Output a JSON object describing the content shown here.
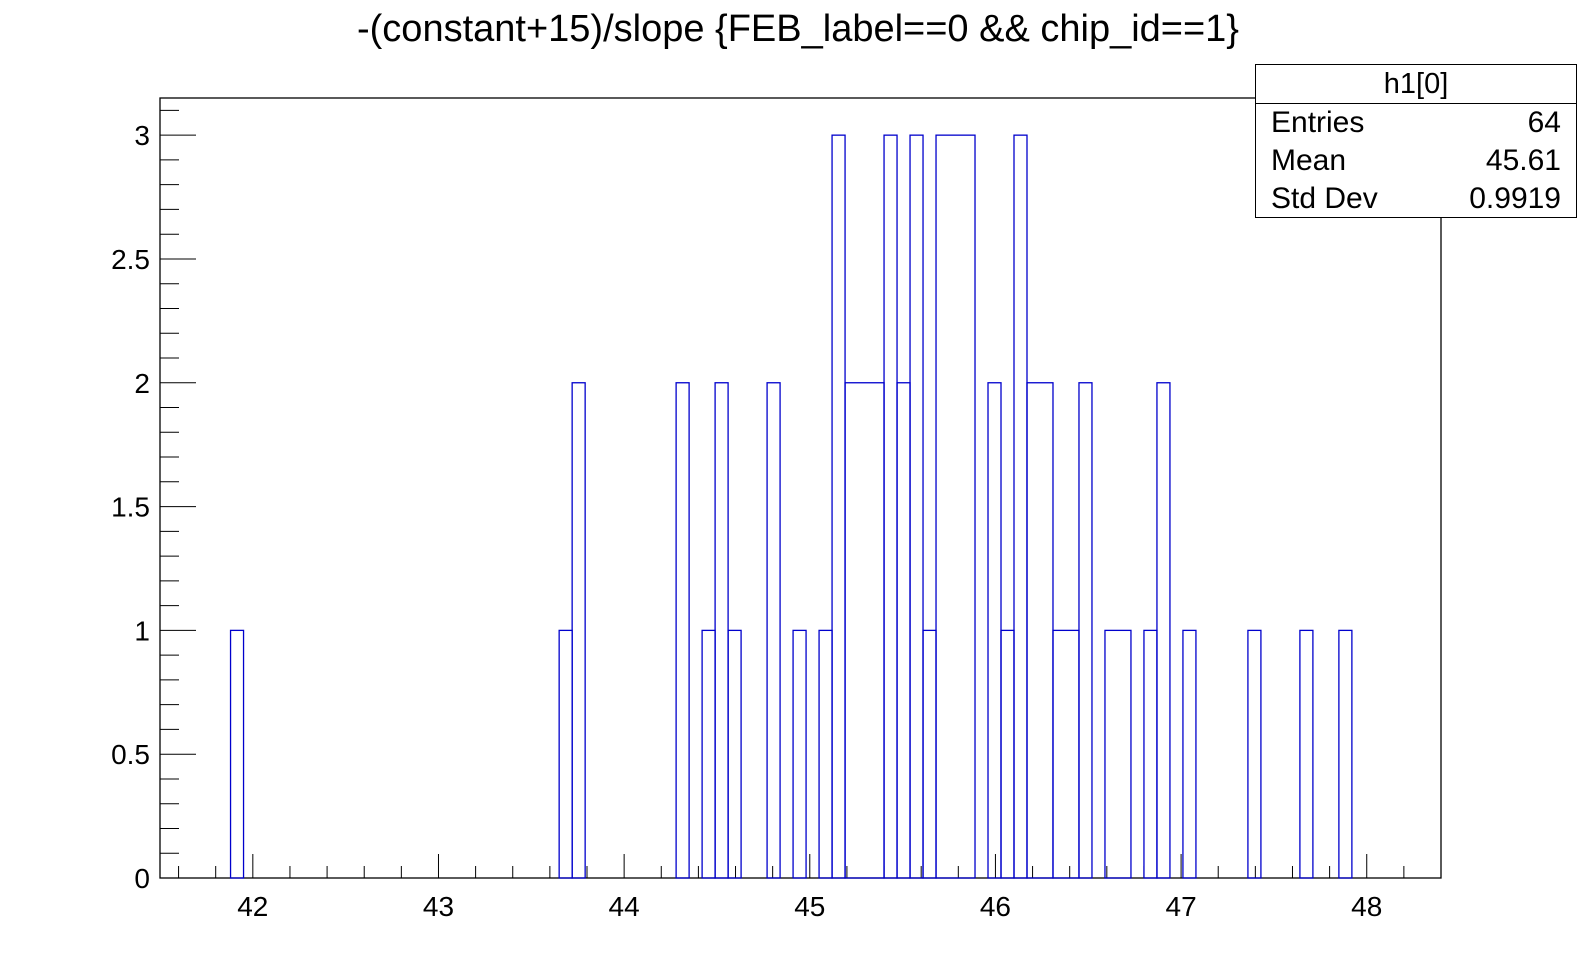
{
  "title": "-(constant+15)/slope {FEB_label==0 && chip_id==1}",
  "stats_box": {
    "name": "h1[0]",
    "rows": [
      {
        "label": "Entries",
        "value": "64"
      },
      {
        "label": "Mean",
        "value": "45.61"
      },
      {
        "label": "Std Dev",
        "value": "0.9919"
      }
    ]
  },
  "colors": {
    "histogram": "#0000cc",
    "axes": "#000000"
  },
  "chart_data": {
    "type": "histogram",
    "xlabel": "",
    "ylabel": "",
    "xlim": [
      41.5,
      48.4
    ],
    "ylim": [
      0,
      3.15
    ],
    "x_ticks": [
      "42",
      "43",
      "44",
      "45",
      "46",
      "47",
      "48"
    ],
    "y_ticks": [
      "0",
      "0.5",
      "1",
      "1.5",
      "2",
      "2.5",
      "3"
    ],
    "bins": [
      {
        "x0": 41.88,
        "x1": 41.95,
        "count": 1
      },
      {
        "x0": 43.65,
        "x1": 43.72,
        "count": 1
      },
      {
        "x0": 43.72,
        "x1": 43.79,
        "count": 2
      },
      {
        "x0": 44.28,
        "x1": 44.35,
        "count": 2
      },
      {
        "x0": 44.42,
        "x1": 44.49,
        "count": 1
      },
      {
        "x0": 44.49,
        "x1": 44.56,
        "count": 2
      },
      {
        "x0": 44.56,
        "x1": 44.63,
        "count": 1
      },
      {
        "x0": 44.77,
        "x1": 44.84,
        "count": 2
      },
      {
        "x0": 44.91,
        "x1": 44.98,
        "count": 1
      },
      {
        "x0": 45.05,
        "x1": 45.12,
        "count": 1
      },
      {
        "x0": 45.12,
        "x1": 45.19,
        "count": 3
      },
      {
        "x0": 45.19,
        "x1": 45.4,
        "count": 2
      },
      {
        "x0": 45.4,
        "x1": 45.47,
        "count": 3
      },
      {
        "x0": 45.47,
        "x1": 45.54,
        "count": 2
      },
      {
        "x0": 45.54,
        "x1": 45.61,
        "count": 3
      },
      {
        "x0": 45.61,
        "x1": 45.68,
        "count": 1
      },
      {
        "x0": 45.68,
        "x1": 45.89,
        "count": 3
      },
      {
        "x0": 45.96,
        "x1": 46.03,
        "count": 2
      },
      {
        "x0": 46.03,
        "x1": 46.1,
        "count": 1
      },
      {
        "x0": 46.1,
        "x1": 46.17,
        "count": 3
      },
      {
        "x0": 46.17,
        "x1": 46.31,
        "count": 2
      },
      {
        "x0": 46.31,
        "x1": 46.45,
        "count": 1
      },
      {
        "x0": 46.45,
        "x1": 46.52,
        "count": 2
      },
      {
        "x0": 46.59,
        "x1": 46.73,
        "count": 1
      },
      {
        "x0": 46.8,
        "x1": 46.87,
        "count": 1
      },
      {
        "x0": 46.87,
        "x1": 46.94,
        "count": 2
      },
      {
        "x0": 47.01,
        "x1": 47.08,
        "count": 1
      },
      {
        "x0": 47.36,
        "x1": 47.43,
        "count": 1
      },
      {
        "x0": 47.64,
        "x1": 47.71,
        "count": 1
      },
      {
        "x0": 47.85,
        "x1": 47.92,
        "count": 1
      }
    ]
  }
}
